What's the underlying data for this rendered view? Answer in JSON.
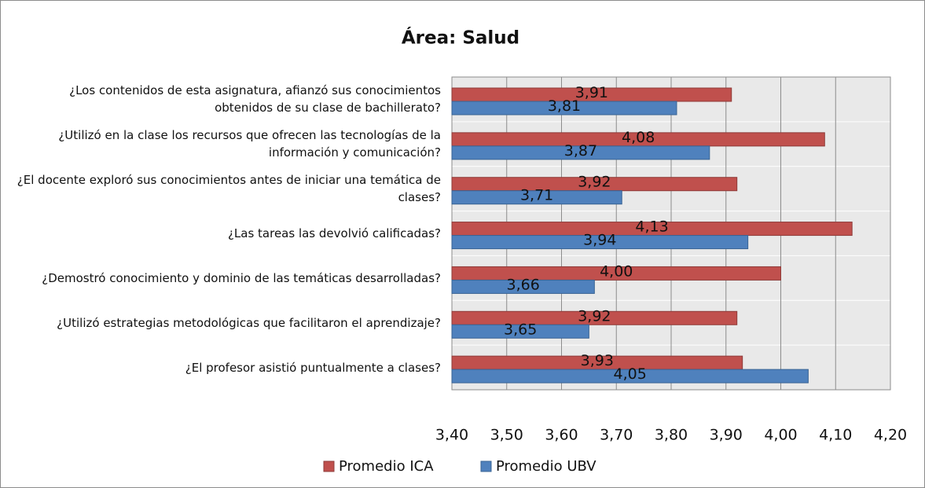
{
  "chart_data": {
    "type": "bar",
    "orientation": "horizontal",
    "title": "Área: Salud",
    "categories": [
      "¿Los contenidos de esta asignatura, afianzó sus conocimientos obtenidos de su clase de bachillerato?",
      "¿Utilizó en la clase los recursos que ofrecen las tecnologías de la información y comunicación?",
      "¿El docente exploró sus conocimientos antes de iniciar una temática de clases?",
      "¿Las tareas las devolvió calificadas?",
      "¿Demostró conocimiento y dominio de las temáticas desarrolladas?",
      "¿Utilizó estrategias metodológicas que facilitaron el aprendizaje?",
      "¿El profesor asistió puntualmente a clases?"
    ],
    "series": [
      {
        "name": "Promedio ICA",
        "color": "#c0504d",
        "values": [
          3.91,
          4.08,
          3.92,
          4.13,
          4.0,
          3.92,
          3.93
        ],
        "value_labels": [
          "3,91",
          "4,08",
          "3,92",
          "4,13",
          "4,00",
          "3,92",
          "3,93"
        ]
      },
      {
        "name": "Promedio UBV",
        "color": "#4f81bd",
        "values": [
          3.81,
          3.87,
          3.71,
          3.94,
          3.66,
          3.65,
          4.05
        ],
        "value_labels": [
          "3,81",
          "3,87",
          "3,71",
          "3,94",
          "3,66",
          "3,65",
          "4,05"
        ]
      }
    ],
    "xlim": [
      3.4,
      4.2
    ],
    "xticks": [
      {
        "value": 3.4,
        "label": "3,40"
      },
      {
        "value": 3.5,
        "label": "3,50"
      },
      {
        "value": 3.6,
        "label": "3,60"
      },
      {
        "value": 3.7,
        "label": "3,70"
      },
      {
        "value": 3.8,
        "label": "3,80"
      },
      {
        "value": 3.9,
        "label": "3,90"
      },
      {
        "value": 4.0,
        "label": "4,00"
      },
      {
        "value": 4.1,
        "label": "4,10"
      },
      {
        "value": 4.2,
        "label": "4,20"
      }
    ],
    "grid": true,
    "legend": "bottom"
  }
}
